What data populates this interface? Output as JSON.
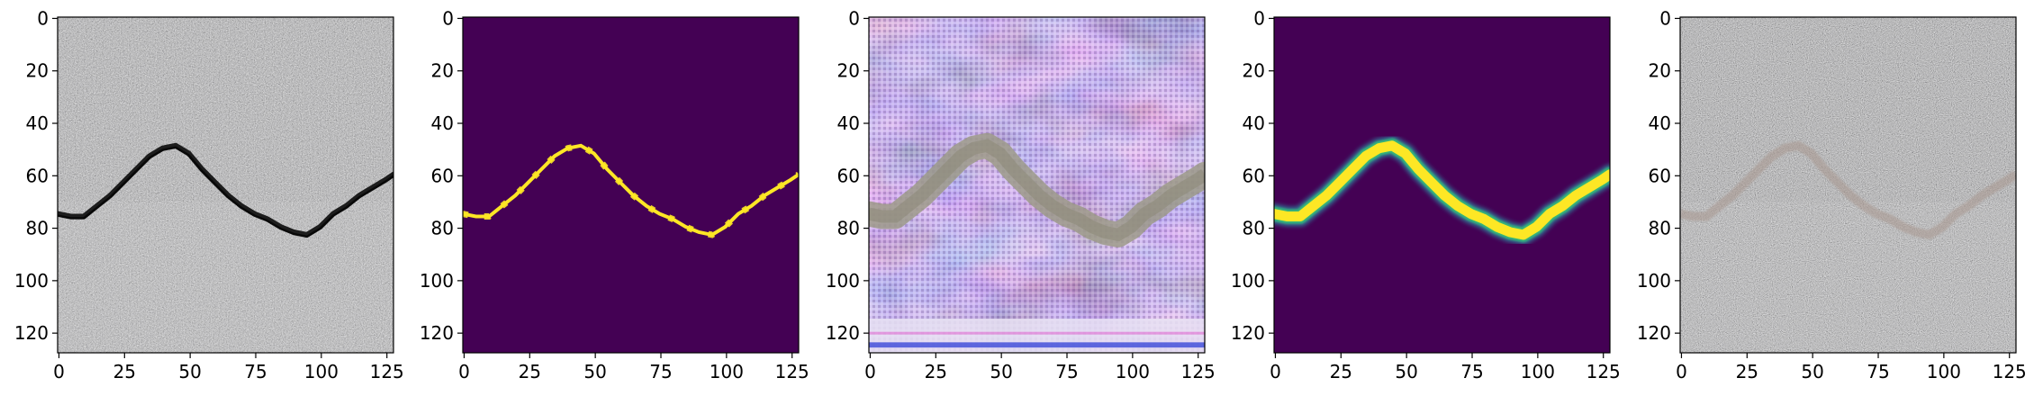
{
  "chart_data": [
    {
      "type": "image",
      "content": "concrete-surface-with-crack",
      "xlim": [
        0,
        128
      ],
      "ylim": [
        128,
        0
      ],
      "xticks": [
        0,
        25,
        50,
        75,
        100,
        125
      ],
      "yticks": [
        0,
        20,
        40,
        60,
        80,
        100,
        120
      ],
      "crack_path_xy": [
        [
          0,
          75
        ],
        [
          5,
          76
        ],
        [
          10,
          76
        ],
        [
          15,
          72
        ],
        [
          20,
          68
        ],
        [
          25,
          63
        ],
        [
          30,
          58
        ],
        [
          35,
          53
        ],
        [
          40,
          50
        ],
        [
          45,
          49
        ],
        [
          50,
          52
        ],
        [
          55,
          58
        ],
        [
          60,
          63
        ],
        [
          65,
          68
        ],
        [
          70,
          72
        ],
        [
          75,
          75
        ],
        [
          80,
          77
        ],
        [
          85,
          80
        ],
        [
          90,
          82
        ],
        [
          95,
          83
        ],
        [
          100,
          80
        ],
        [
          105,
          75
        ],
        [
          110,
          72
        ],
        [
          115,
          68
        ],
        [
          120,
          65
        ],
        [
          125,
          62
        ],
        [
          128,
          60
        ]
      ]
    },
    {
      "type": "mask",
      "content": "binary-crack-mask",
      "colormap": "viridis",
      "xlim": [
        0,
        128
      ],
      "ylim": [
        128,
        0
      ],
      "xticks": [
        0,
        25,
        50,
        75,
        100,
        125
      ],
      "yticks": [
        0,
        20,
        40,
        60,
        80,
        100,
        120
      ]
    },
    {
      "type": "image",
      "content": "generated-noisy-image",
      "xlim": [
        0,
        128
      ],
      "ylim": [
        128,
        0
      ],
      "xticks": [
        0,
        25,
        50,
        75,
        100,
        125
      ],
      "yticks": [
        0,
        20,
        40,
        60,
        80,
        100,
        120
      ]
    },
    {
      "type": "mask",
      "content": "smooth-predicted-mask",
      "colormap": "viridis",
      "xlim": [
        0,
        128
      ],
      "ylim": [
        128,
        0
      ],
      "xticks": [
        0,
        25,
        50,
        75,
        100,
        125
      ],
      "yticks": [
        0,
        20,
        40,
        60,
        80,
        100,
        120
      ]
    },
    {
      "type": "image",
      "content": "reconstructed-concrete-surface",
      "xlim": [
        0,
        128
      ],
      "ylim": [
        128,
        0
      ],
      "xticks": [
        0,
        25,
        50,
        75,
        100,
        125
      ],
      "yticks": [
        0,
        20,
        40,
        60,
        80,
        100,
        120
      ]
    }
  ],
  "colors": {
    "viridis_dark": "#440154",
    "viridis_yellow": "#fde725",
    "viridis_green": "#35b779",
    "concrete": "#9a9a98",
    "crack": "#1d1d1d"
  }
}
